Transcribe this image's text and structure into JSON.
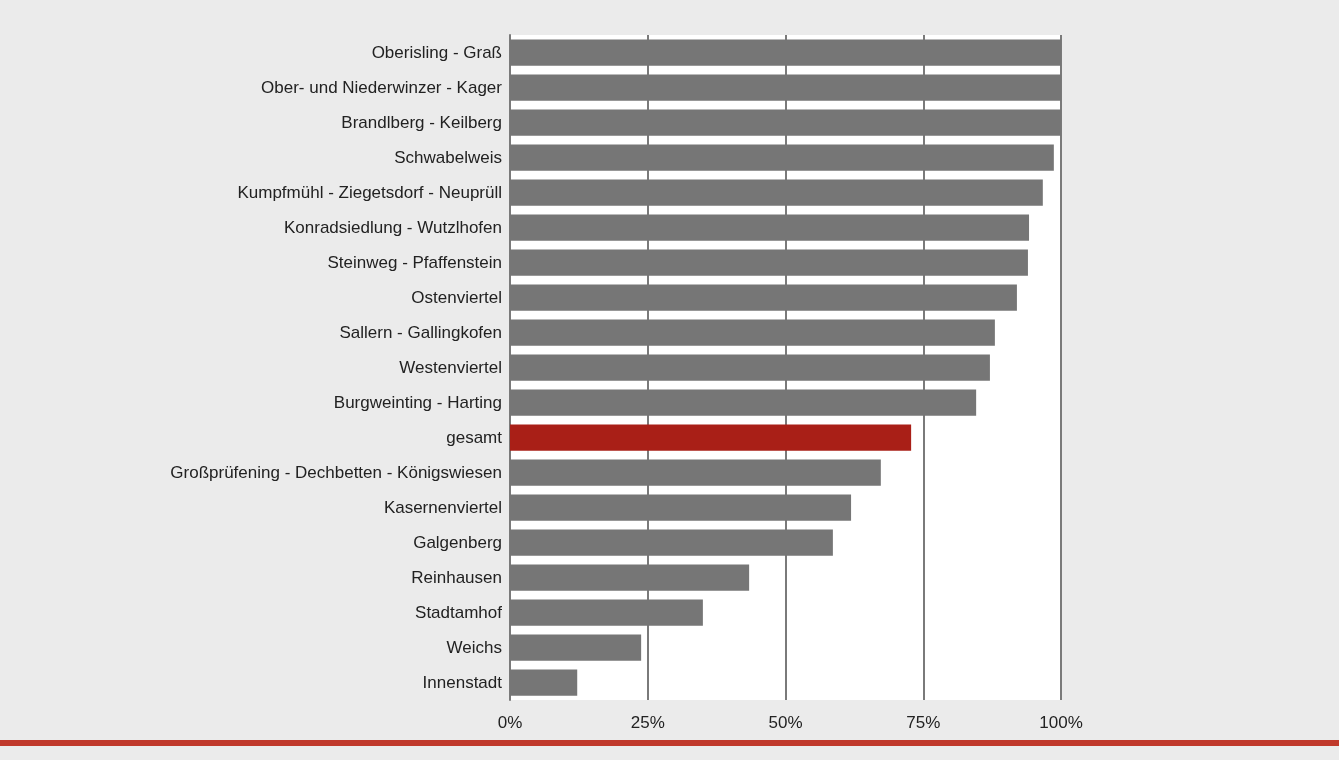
{
  "chart_data": {
    "type": "bar",
    "orientation": "horizontal",
    "categories": [
      "Oberisling - Graß",
      "Ober- und Niederwinzer - Kager",
      "Brandlberg - Keilberg",
      "Schwabelweis",
      "Kumpfmühl - Ziegetsdorf - Neuprüll",
      "Konradsiedlung - Wutzlhofen",
      "Steinweg - Pfaffenstein",
      "Ostenviertel",
      "Sallern - Gallingkofen",
      "Westenviertel",
      "Burgweinting - Harting",
      "gesamt",
      "Großprüfening - Dechbetten - Königswiesen",
      "Kasernenviertel",
      "Galgenberg",
      "Reinhausen",
      "Stadtamhof",
      "Weichs",
      "Innenstadt"
    ],
    "values": [
      100,
      100,
      100,
      98.7,
      96.7,
      94.2,
      94.0,
      92.0,
      88.0,
      87.1,
      84.6,
      72.8,
      67.3,
      61.9,
      58.6,
      43.4,
      35.0,
      23.8,
      12.2
    ],
    "colors": [
      "#767676",
      "#767676",
      "#767676",
      "#767676",
      "#767676",
      "#767676",
      "#767676",
      "#767676",
      "#767676",
      "#767676",
      "#767676",
      "#a91f17",
      "#767676",
      "#767676",
      "#767676",
      "#767676",
      "#767676",
      "#767676",
      "#767676"
    ],
    "xlim": [
      0,
      100
    ],
    "xticks": [
      {
        "value": 0,
        "label": "0%"
      },
      {
        "value": 25,
        "label": "25%"
      },
      {
        "value": 50,
        "label": "50%"
      },
      {
        "value": 75,
        "label": "75%"
      },
      {
        "value": 100,
        "label": "100%"
      }
    ],
    "grid": "x"
  }
}
